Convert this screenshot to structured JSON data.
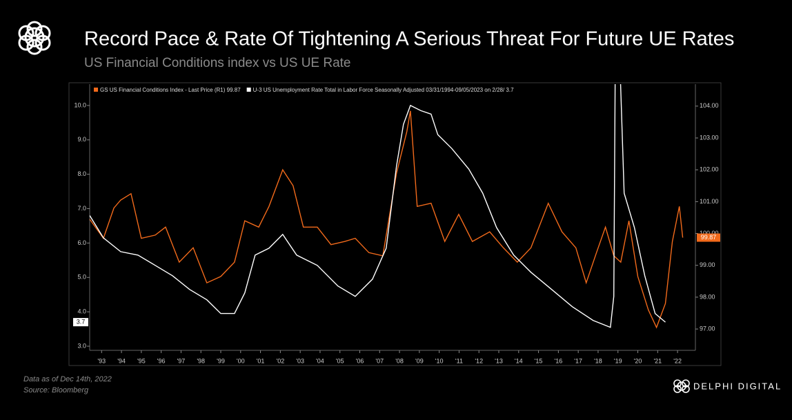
{
  "header": {
    "title": "Record Pace & Rate Of Tightening A Serious Threat For Future UE Rates",
    "subtitle": "US Financial Conditions index vs US UE Rate"
  },
  "chart_data": {
    "type": "line",
    "series": [
      {
        "name": "U-3 US Unemployment Rate Total in Labor Force Seasonally Adjusted 03/31/1994-09/05/2023 on 2/28/ 3.7",
        "color": "#ffffff",
        "axis": "y",
        "x": [
          1992.9,
          1993.59,
          1994.46,
          1995.33,
          1996.2,
          1997.07,
          1997.93,
          1998.8,
          1999.5,
          2000.19,
          2000.71,
          2001.23,
          2001.93,
          2002.62,
          2003.32,
          2004.36,
          2005.4,
          2006.27,
          2007.14,
          2007.83,
          2008.35,
          2008.7,
          2009.05,
          2009.57,
          2010.09,
          2010.43,
          2011.13,
          2011.99,
          2012.69,
          2013.39,
          2014.25,
          2015.12,
          2016.16,
          2017.2,
          2018.25,
          2019.12,
          2019.29,
          2019.4,
          2019.81,
          2020.33,
          2020.85,
          2021.37,
          2021.89
        ],
        "values": [
          6.8,
          6.15,
          5.75,
          5.65,
          5.35,
          5.05,
          4.65,
          4.35,
          3.95,
          3.95,
          4.55,
          5.65,
          5.85,
          6.25,
          5.65,
          5.35,
          4.75,
          4.45,
          4.95,
          5.85,
          8.25,
          9.45,
          10.0,
          9.85,
          9.75,
          9.15,
          8.75,
          8.15,
          7.45,
          6.45,
          5.65,
          5.15,
          4.65,
          4.15,
          3.75,
          3.55,
          4.45,
          14.7,
          7.45,
          6.45,
          5.05,
          3.95,
          3.7
        ]
      },
      {
        "name": "GS US Financial Conditions Index - Last Price (R1) 99.87",
        "color": "#f26a1b",
        "axis": "y2",
        "x": [
          1992.9,
          1993.59,
          1994.12,
          1994.46,
          1994.98,
          1995.5,
          1996.2,
          1996.72,
          1997.41,
          1998.11,
          1998.8,
          1999.5,
          2000.19,
          2000.71,
          2001.41,
          2001.93,
          2002.62,
          2003.14,
          2003.66,
          2004.36,
          2005.05,
          2005.75,
          2006.27,
          2006.96,
          2007.66,
          2008.35,
          2008.87,
          2009.05,
          2009.39,
          2010.09,
          2010.78,
          2011.48,
          2012.17,
          2013.04,
          2013.73,
          2014.43,
          2015.12,
          2015.99,
          2016.68,
          2017.38,
          2017.9,
          2018.42,
          2018.87,
          2019.29,
          2019.64,
          2020.05,
          2020.5,
          2021.03,
          2021.44,
          2021.89,
          2022.24,
          2022.59,
          2022.76
        ],
        "values": [
          100.45,
          99.85,
          100.8,
          101.05,
          101.25,
          99.85,
          99.95,
          100.2,
          99.1,
          99.55,
          98.45,
          98.65,
          99.1,
          100.4,
          100.2,
          100.85,
          102.0,
          101.5,
          100.2,
          100.2,
          99.65,
          99.75,
          99.85,
          99.4,
          99.3,
          101.9,
          103.2,
          103.85,
          100.85,
          100.95,
          99.75,
          100.6,
          99.75,
          100.05,
          99.55,
          99.1,
          99.55,
          100.95,
          100.05,
          99.55,
          98.45,
          99.4,
          100.2,
          99.3,
          99.1,
          100.4,
          98.65,
          97.6,
          97.05,
          97.8,
          99.75,
          100.85,
          99.87
        ]
      }
    ],
    "xlim": [
      1992.9,
      2023.4
    ],
    "xticks": [
      {
        "value": 1993.5,
        "label": "'93"
      },
      {
        "value": 1994.5,
        "label": "'94"
      },
      {
        "value": 1995.5,
        "label": "'95"
      },
      {
        "value": 1996.5,
        "label": "'96"
      },
      {
        "value": 1997.5,
        "label": "'97"
      },
      {
        "value": 1998.5,
        "label": "'98"
      },
      {
        "value": 1999.5,
        "label": "'99"
      },
      {
        "value": 2000.5,
        "label": "'00"
      },
      {
        "value": 2001.5,
        "label": "'01"
      },
      {
        "value": 2002.5,
        "label": "'02"
      },
      {
        "value": 2003.5,
        "label": "'03"
      },
      {
        "value": 2004.5,
        "label": "'04"
      },
      {
        "value": 2005.5,
        "label": "'05"
      },
      {
        "value": 2006.5,
        "label": "'06"
      },
      {
        "value": 2007.5,
        "label": "'07"
      },
      {
        "value": 2008.5,
        "label": "'08"
      },
      {
        "value": 2009.5,
        "label": "'09"
      },
      {
        "value": 2010.5,
        "label": "'10"
      },
      {
        "value": 2011.5,
        "label": "'11"
      },
      {
        "value": 2012.5,
        "label": "'12"
      },
      {
        "value": 2013.5,
        "label": "'13"
      },
      {
        "value": 2014.5,
        "label": "'14"
      },
      {
        "value": 2015.5,
        "label": "'15"
      },
      {
        "value": 2016.5,
        "label": "'16"
      },
      {
        "value": 2017.5,
        "label": "'17"
      },
      {
        "value": 2018.5,
        "label": "'18"
      },
      {
        "value": 2019.5,
        "label": "'19"
      },
      {
        "value": 2020.5,
        "label": "'20"
      },
      {
        "value": 2021.5,
        "label": "'21"
      },
      {
        "value": 2022.5,
        "label": "'22"
      }
    ],
    "ylim": [
      2.88,
      10.62
    ],
    "yticks": [
      {
        "value": 3,
        "label": "3.0"
      },
      {
        "value": 4,
        "label": "4.0"
      },
      {
        "value": 5,
        "label": "5.0"
      },
      {
        "value": 6,
        "label": "6.0"
      },
      {
        "value": 7,
        "label": "7.0"
      },
      {
        "value": 8,
        "label": "8.0"
      },
      {
        "value": 9,
        "label": "9.0"
      },
      {
        "value": 10,
        "label": "10.0"
      }
    ],
    "y2lim": [
      96.33,
      104.69
    ],
    "y2ticks": [
      {
        "value": 97,
        "label": "97.00"
      },
      {
        "value": 98,
        "label": "98.00"
      },
      {
        "value": 99,
        "label": "99.00"
      },
      {
        "value": 100,
        "label": "100.00"
      },
      {
        "value": 101,
        "label": "101.00"
      },
      {
        "value": 102,
        "label": "102.00"
      },
      {
        "value": 103,
        "label": "103.00"
      },
      {
        "value": 104,
        "label": "104.00"
      }
    ]
  },
  "footer": {
    "note": "Data as of Dec 14th, 2022",
    "source": "Source: Bloomberg",
    "brand": "DELPHI DIGITAL"
  }
}
